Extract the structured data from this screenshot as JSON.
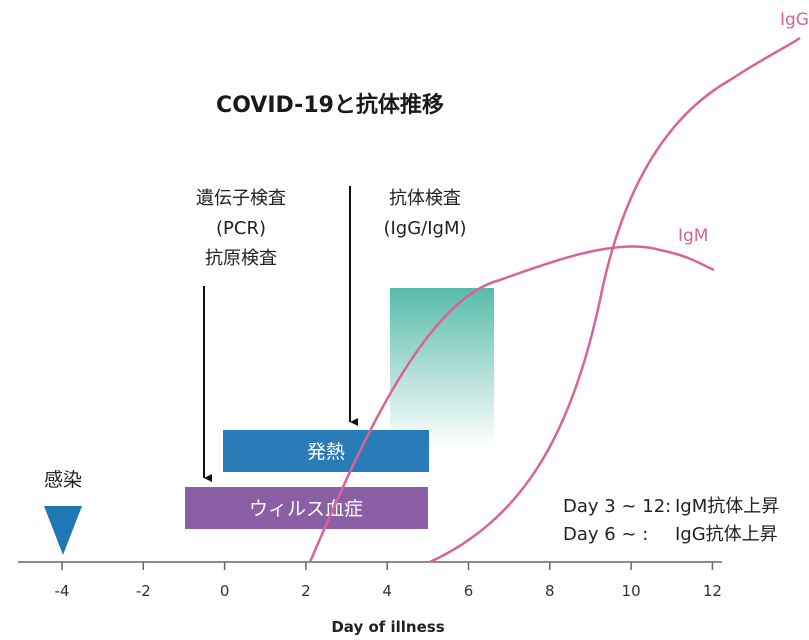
{
  "title": "COVID-19と抗体推移",
  "axis": {
    "xlabel": "Day of illness",
    "ticks": [
      "-4",
      "-2",
      "0",
      "2",
      "4",
      "6",
      "8",
      "10",
      "12"
    ]
  },
  "tests": {
    "pcr_lines": [
      "遺伝子検査",
      "(PCR)",
      "抗原検査"
    ],
    "antibody_lines": [
      "抗体検査",
      "(IgG/IgM)"
    ]
  },
  "infection_label": "感染",
  "bars": {
    "fever": "発熱",
    "viremia": "ウィルス血症"
  },
  "curves": {
    "igm": "IgM",
    "igg": "IgG"
  },
  "notes": {
    "line1_day": "Day 3 ~ 12:",
    "line1_text": "IgM抗体上昇",
    "line2_day": "Day 6 ~ :",
    "line2_text": "IgG抗体上昇"
  },
  "colors": {
    "fever_bar": "#2a7cb8",
    "viremia_bar": "#8a5fa6",
    "curve": "#d9629a",
    "infection_marker": "#1f78b4",
    "antibody_window": "#4fb8a6"
  }
}
